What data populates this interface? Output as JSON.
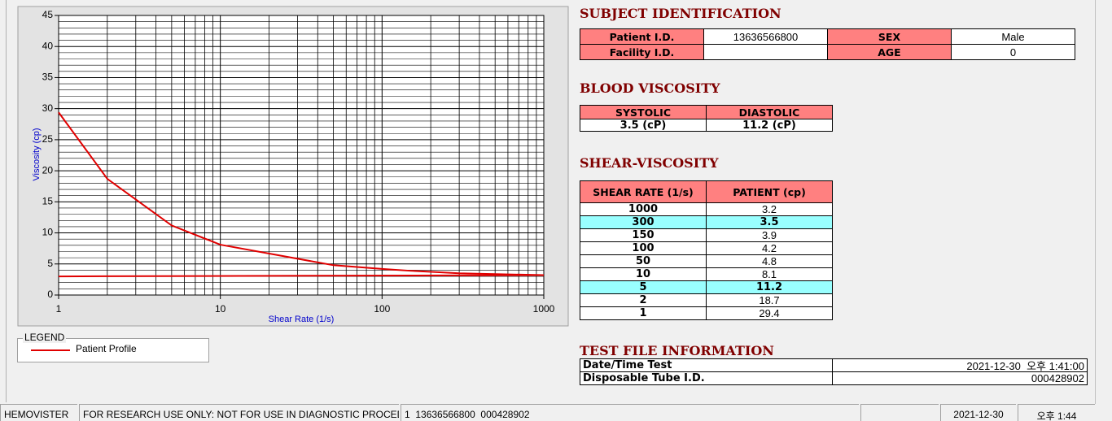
{
  "chart_data": {
    "type": "line",
    "xlabel": "Shear Rate (1/s)",
    "ylabel": "Viscosity (cp)",
    "xscale": "log",
    "xlim": [
      1,
      1000
    ],
    "xticks": [
      1,
      10,
      100,
      1000
    ],
    "xminorticks": [
      2,
      3,
      4,
      5,
      6,
      7,
      8,
      9,
      20,
      30,
      40,
      50,
      60,
      70,
      80,
      90,
      200,
      300,
      400,
      500,
      600,
      700,
      800,
      900
    ],
    "ylim": [
      0,
      45
    ],
    "yticks": [
      0,
      5,
      10,
      15,
      20,
      25,
      30,
      35,
      40,
      45
    ],
    "yminorticks": [
      1,
      2,
      3,
      4,
      6,
      7,
      8,
      9,
      11,
      12,
      13,
      14,
      16,
      17,
      18,
      19,
      21,
      22,
      23,
      24,
      26,
      27,
      28,
      29,
      31,
      32,
      33,
      34,
      36,
      37,
      38,
      39,
      41,
      42,
      43,
      44
    ],
    "grid": true,
    "series": [
      {
        "name": "Patient Profile",
        "color": "#e00000",
        "x": [
          1,
          2,
          5,
          10,
          50,
          100,
          150,
          300,
          1000
        ],
        "values": [
          29.4,
          18.7,
          11.2,
          8.1,
          4.8,
          4.2,
          3.9,
          3.5,
          3.2
        ]
      },
      {
        "color": "#e00000",
        "x": [
          1,
          1000
        ],
        "values": [
          3.0,
          3.2
        ]
      }
    ],
    "legend_title": "LEGEND"
  },
  "subject": {
    "title": "SUBJECT IDENTIFICATION",
    "rows": [
      [
        {
          "label": "Patient I.D.",
          "value": "13636566800"
        },
        {
          "label": "SEX",
          "value": "Male"
        }
      ],
      [
        {
          "label": "Facility I.D."
        },
        {
          "label": "AGE",
          "value": "0"
        }
      ]
    ]
  },
  "blood": {
    "title": "BLOOD VISCOSITY",
    "headers": [
      "SYSTOLIC",
      "DIASTOLIC"
    ],
    "values": [
      "3.5 (cP)",
      "11.2 (cP)"
    ]
  },
  "shear": {
    "title": "SHEAR-VISCOSITY",
    "headers": [
      "SHEAR RATE (1/s)",
      "PATIENT (cp)"
    ],
    "highlight_color": "#99ffff",
    "rows": [
      {
        "rate": "1000",
        "patient": "3.2"
      },
      {
        "rate": "300",
        "patient": "3.5",
        "highlight": true
      },
      {
        "rate": "150",
        "patient": "3.9"
      },
      {
        "rate": "100",
        "patient": "4.2"
      },
      {
        "rate": "50",
        "patient": "4.8"
      },
      {
        "rate": "10",
        "patient": "8.1"
      },
      {
        "rate": "5",
        "patient": "11.2",
        "highlight": true
      },
      {
        "rate": "2",
        "patient": "18.7"
      },
      {
        "rate": "1",
        "patient": "29.4"
      }
    ]
  },
  "testfile": {
    "title": "TEST FILE INFORMATION",
    "rows": [
      {
        "label": "Date/Time Test",
        "value": "2021-12-30  오후 1:41:00"
      },
      {
        "label": "Disposable Tube I.D.",
        "value": "000428902"
      }
    ]
  },
  "status": [
    "HEMOVISTER",
    "FOR RESEARCH USE ONLY: NOT FOR USE IN DIAGNOSTIC PROCEDURES",
    "1  13636566800  000428902",
    null,
    "2021-12-30",
    "오후 1:44"
  ]
}
